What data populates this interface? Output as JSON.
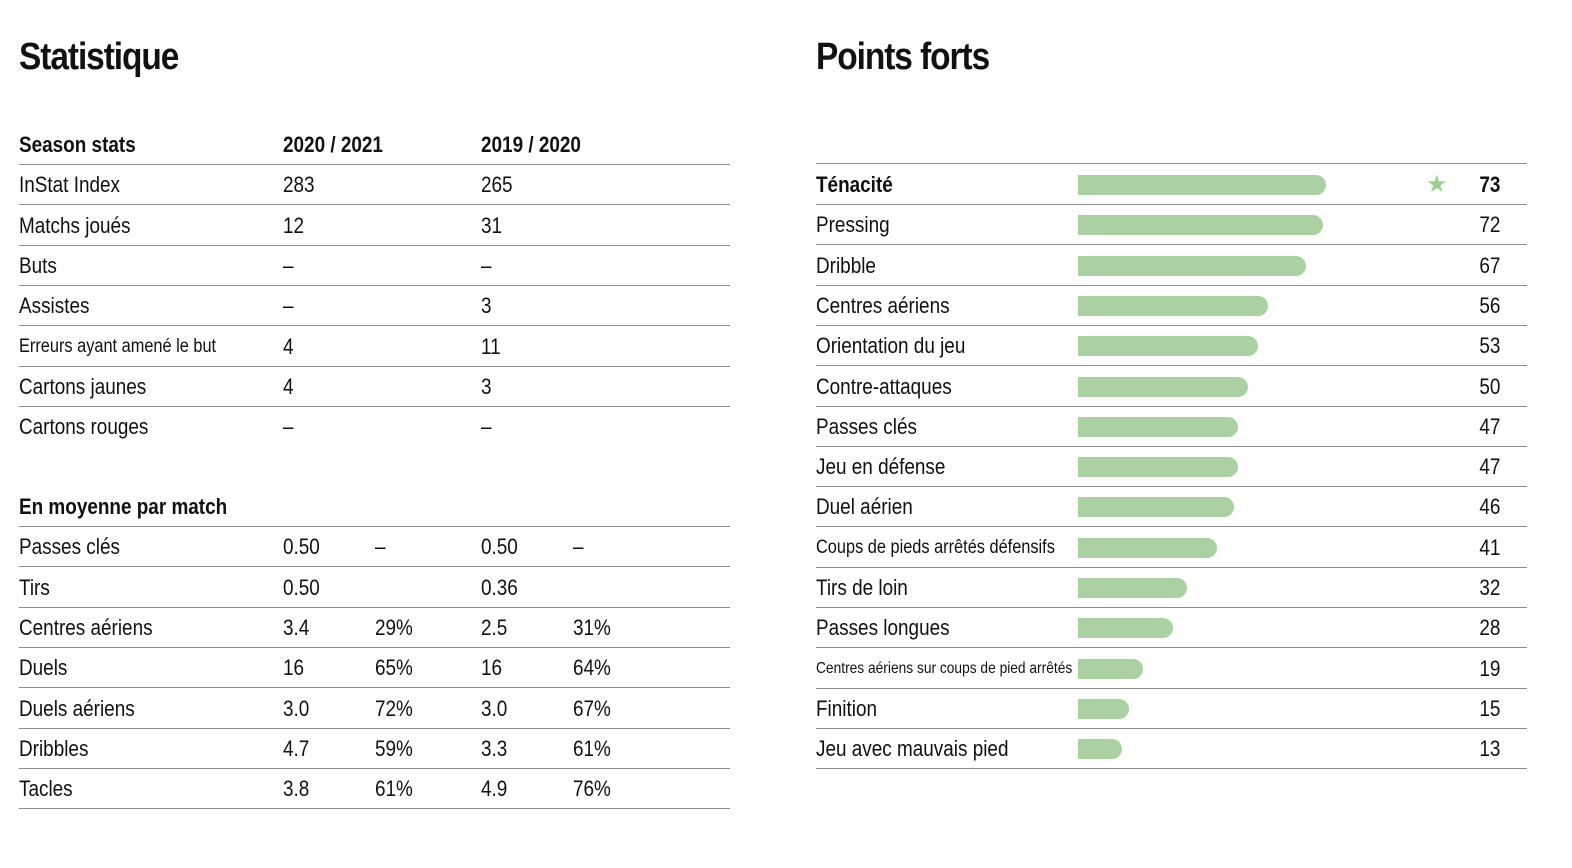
{
  "left": {
    "title": "Statistique",
    "season_header": {
      "label": "Season stats",
      "col1": "2020 / 2021",
      "col2": "2019 / 2020"
    },
    "season_rows": [
      {
        "label": "InStat Index",
        "v1": "283",
        "v2": "265"
      },
      {
        "label": "Matchs joués",
        "v1": "12",
        "v2": "31"
      },
      {
        "label": "Buts",
        "v1": "–",
        "v2": "–"
      },
      {
        "label": "Assistes",
        "v1": "–",
        "v2": "3"
      },
      {
        "label": "Erreurs ayant amené le but",
        "v1": "4",
        "v2": "11"
      },
      {
        "label": "Cartons jaunes",
        "v1": "4",
        "v2": "3"
      },
      {
        "label": "Cartons rouges",
        "v1": "–",
        "v2": "–"
      }
    ],
    "avg_header": {
      "label": "En moyenne par match"
    },
    "avg_rows": [
      {
        "label": "Passes clés",
        "v1": "0.50",
        "p1": "–",
        "v2": "0.50",
        "p2": "–"
      },
      {
        "label": "Tirs",
        "v1": "0.50",
        "p1": "",
        "v2": "0.36",
        "p2": ""
      },
      {
        "label": "Centres aériens",
        "v1": "3.4",
        "p1": "29%",
        "v2": "2.5",
        "p2": "31%"
      },
      {
        "label": "Duels",
        "v1": "16",
        "p1": "65%",
        "v2": "16",
        "p2": "64%"
      },
      {
        "label": "Duels aériens",
        "v1": "3.0",
        "p1": "72%",
        "v2": "3.0",
        "p2": "67%"
      },
      {
        "label": "Dribbles",
        "v1": "4.7",
        "p1": "59%",
        "v2": "3.3",
        "p2": "61%"
      },
      {
        "label": "Tacles",
        "v1": "3.8",
        "p1": "61%",
        "v2": "4.9",
        "p2": "76%"
      }
    ]
  },
  "right": {
    "title": "Points forts",
    "bar_color": "#abd1a2",
    "star_color": "#9ccf8f",
    "scale_max": 100,
    "rows": [
      {
        "label": "Ténacité",
        "value": 73,
        "value_text": "73",
        "bold": true,
        "star": "★"
      },
      {
        "label": "Pressing",
        "value": 72,
        "value_text": "72"
      },
      {
        "label": "Dribble",
        "value": 67,
        "value_text": "67"
      },
      {
        "label": "Centres aériens",
        "value": 56,
        "value_text": "56"
      },
      {
        "label": "Orientation du jeu",
        "value": 53,
        "value_text": "53"
      },
      {
        "label": "Contre-attaques",
        "value": 50,
        "value_text": "50"
      },
      {
        "label": "Passes clés",
        "value": 47,
        "value_text": "47"
      },
      {
        "label": "Jeu en défense",
        "value": 47,
        "value_text": "47"
      },
      {
        "label": "Duel aérien",
        "value": 46,
        "value_text": "46"
      },
      {
        "label": "Coups de pieds arrêtés défensifs",
        "value": 41,
        "value_text": "41",
        "size": "small"
      },
      {
        "label": "Tirs de loin",
        "value": 32,
        "value_text": "32"
      },
      {
        "label": "Passes longues",
        "value": 28,
        "value_text": "28"
      },
      {
        "label": "Centres aériens sur coups de pied arrêtés",
        "value": 19,
        "value_text": "19",
        "size": "tiny"
      },
      {
        "label": "Finition",
        "value": 15,
        "value_text": "15"
      },
      {
        "label": "Jeu avec mauvais pied",
        "value": 13,
        "value_text": "13"
      }
    ]
  }
}
